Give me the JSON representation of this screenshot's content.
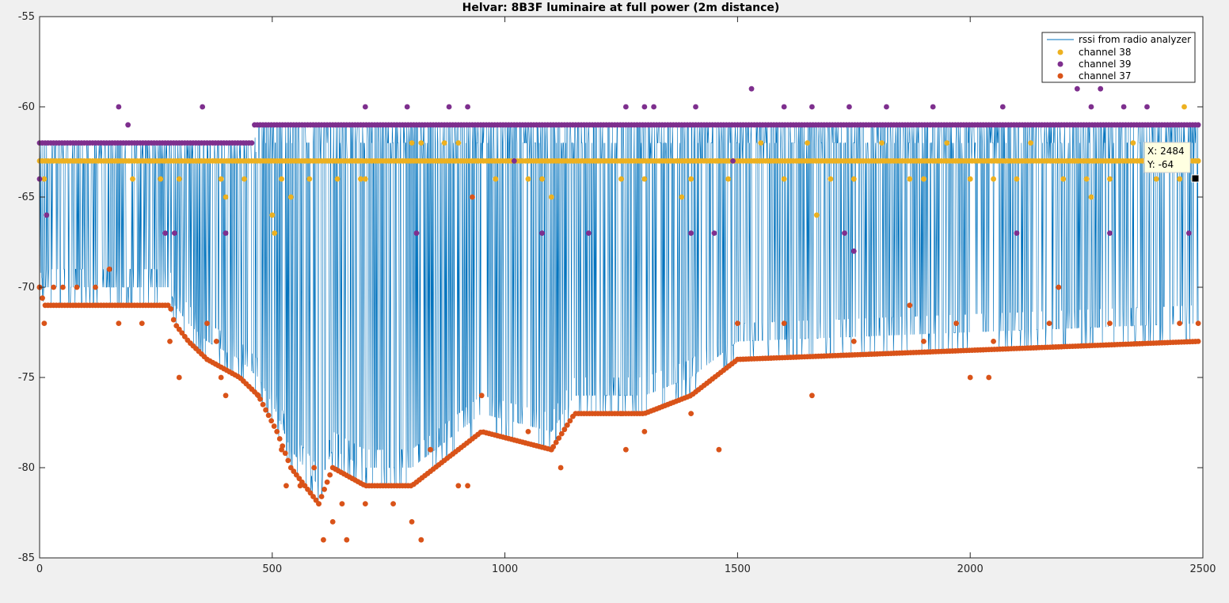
{
  "chart_data": {
    "type": "line",
    "title": "Helvar: 8B3F luminaire at full power (2m distance)",
    "xlabel": "",
    "ylabel": "",
    "xlim": [
      0,
      2500
    ],
    "ylim": [
      -85,
      -55
    ],
    "x_ticks": [
      0,
      500,
      1000,
      1500,
      2000,
      2500
    ],
    "y_ticks": [
      -55,
      -60,
      -65,
      -70,
      -75,
      -80,
      -85
    ],
    "grid": false,
    "legend_position": "top-right",
    "series": [
      {
        "name": "rssi from radio analyzer",
        "style": "line",
        "color": "#0072BD",
        "note_values": "dense zig-zag between channel readings, upper ~-61/-62, lower follows channel 37 envelope",
        "upper_envelope": [
          [
            0,
            -62
          ],
          [
            460,
            -62
          ],
          [
            470,
            -61
          ],
          [
            2490,
            -61
          ]
        ],
        "lower_envelope": [
          [
            0,
            -70
          ],
          [
            10,
            -71
          ],
          [
            280,
            -71
          ],
          [
            290,
            -72
          ],
          [
            320,
            -73
          ],
          [
            360,
            -74
          ],
          [
            430,
            -75
          ],
          [
            470,
            -76
          ],
          [
            510,
            -78
          ],
          [
            540,
            -80
          ],
          [
            600,
            -82
          ],
          [
            630,
            -80
          ],
          [
            700,
            -81
          ],
          [
            800,
            -81
          ],
          [
            850,
            -80
          ],
          [
            900,
            -79
          ],
          [
            950,
            -78
          ],
          [
            1100,
            -79
          ],
          [
            1150,
            -77
          ],
          [
            1300,
            -77
          ],
          [
            1400,
            -76
          ],
          [
            1450,
            -75
          ],
          [
            1500,
            -74
          ],
          [
            2490,
            -73
          ]
        ]
      },
      {
        "name": "channel 38",
        "style": "markers",
        "color": "#EDB120",
        "points": [
          [
            10,
            -64
          ],
          [
            200,
            -64
          ],
          [
            260,
            -64
          ],
          [
            300,
            -64
          ],
          [
            390,
            -64
          ],
          [
            400,
            -65
          ],
          [
            440,
            -64
          ],
          [
            500,
            -66
          ],
          [
            505,
            -67
          ],
          [
            520,
            -64
          ],
          [
            540,
            -65
          ],
          [
            580,
            -64
          ],
          [
            640,
            -64
          ],
          [
            690,
            -64
          ],
          [
            700,
            -64
          ],
          [
            800,
            -62
          ],
          [
            820,
            -62
          ],
          [
            870,
            -62
          ],
          [
            900,
            -62
          ],
          [
            980,
            -64
          ],
          [
            1050,
            -64
          ],
          [
            1080,
            -64
          ],
          [
            1100,
            -65
          ],
          [
            1250,
            -64
          ],
          [
            1300,
            -64
          ],
          [
            1380,
            -65
          ],
          [
            1400,
            -64
          ],
          [
            1480,
            -64
          ],
          [
            1550,
            -62
          ],
          [
            1600,
            -64
          ],
          [
            1650,
            -62
          ],
          [
            1670,
            -66
          ],
          [
            1700,
            -64
          ],
          [
            1750,
            -64
          ],
          [
            1810,
            -62
          ],
          [
            1870,
            -64
          ],
          [
            1900,
            -64
          ],
          [
            1950,
            -62
          ],
          [
            2000,
            -64
          ],
          [
            2050,
            -64
          ],
          [
            2100,
            -64
          ],
          [
            2130,
            -62
          ],
          [
            2200,
            -64
          ],
          [
            2250,
            -64
          ],
          [
            2260,
            -65
          ],
          [
            2300,
            -64
          ],
          [
            2350,
            -62
          ],
          [
            2400,
            -64
          ],
          [
            2450,
            -64
          ],
          [
            2460,
            -60
          ],
          [
            2480,
            -64
          ],
          [
            2490,
            -63
          ]
        ],
        "baseline_value": -63
      },
      {
        "name": "channel 39",
        "style": "markers",
        "color": "#7E2F8E",
        "points": [
          [
            0,
            -64
          ],
          [
            15,
            -66
          ],
          [
            170,
            -60
          ],
          [
            190,
            -61
          ],
          [
            270,
            -67
          ],
          [
            290,
            -67
          ],
          [
            350,
            -60
          ],
          [
            400,
            -67
          ],
          [
            700,
            -60
          ],
          [
            790,
            -60
          ],
          [
            810,
            -67
          ],
          [
            880,
            -60
          ],
          [
            920,
            -60
          ],
          [
            1020,
            -63
          ],
          [
            1080,
            -67
          ],
          [
            1180,
            -67
          ],
          [
            1260,
            -60
          ],
          [
            1300,
            -60
          ],
          [
            1320,
            -60
          ],
          [
            1400,
            -67
          ],
          [
            1410,
            -60
          ],
          [
            1450,
            -67
          ],
          [
            1490,
            -63
          ],
          [
            1530,
            -59
          ],
          [
            1600,
            -60
          ],
          [
            1660,
            -60
          ],
          [
            1730,
            -67
          ],
          [
            1740,
            -60
          ],
          [
            1750,
            -68
          ],
          [
            1820,
            -60
          ],
          [
            1920,
            -60
          ],
          [
            2070,
            -60
          ],
          [
            2100,
            -67
          ],
          [
            2230,
            -59
          ],
          [
            2260,
            -60
          ],
          [
            2280,
            -59
          ],
          [
            2300,
            -67
          ],
          [
            2330,
            -60
          ],
          [
            2380,
            -60
          ],
          [
            2470,
            -67
          ]
        ],
        "baseline_value": -62,
        "upper_baseline_value": -61
      },
      {
        "name": "channel 37",
        "style": "markers",
        "color": "#D95319",
        "points": [
          [
            0,
            -70
          ],
          [
            10,
            -72
          ],
          [
            30,
            -70
          ],
          [
            50,
            -70
          ],
          [
            80,
            -70
          ],
          [
            120,
            -70
          ],
          [
            150,
            -69
          ],
          [
            170,
            -72
          ],
          [
            220,
            -72
          ],
          [
            280,
            -73
          ],
          [
            300,
            -75
          ],
          [
            360,
            -72
          ],
          [
            380,
            -73
          ],
          [
            390,
            -75
          ],
          [
            400,
            -76
          ],
          [
            470,
            -76
          ],
          [
            520,
            -79
          ],
          [
            530,
            -81
          ],
          [
            560,
            -81
          ],
          [
            590,
            -80
          ],
          [
            600,
            -82
          ],
          [
            610,
            -84
          ],
          [
            630,
            -83
          ],
          [
            650,
            -82
          ],
          [
            660,
            -84
          ],
          [
            700,
            -82
          ],
          [
            760,
            -82
          ],
          [
            800,
            -83
          ],
          [
            820,
            -84
          ],
          [
            840,
            -79
          ],
          [
            900,
            -81
          ],
          [
            920,
            -81
          ],
          [
            930,
            -65
          ],
          [
            950,
            -76
          ],
          [
            1050,
            -78
          ],
          [
            1100,
            -79
          ],
          [
            1120,
            -80
          ],
          [
            1250,
            -77
          ],
          [
            1260,
            -79
          ],
          [
            1300,
            -78
          ],
          [
            1400,
            -77
          ],
          [
            1460,
            -79
          ],
          [
            1500,
            -72
          ],
          [
            1600,
            -72
          ],
          [
            1660,
            -76
          ],
          [
            1750,
            -73
          ],
          [
            1870,
            -71
          ],
          [
            1900,
            -73
          ],
          [
            1970,
            -72
          ],
          [
            2000,
            -75
          ],
          [
            2040,
            -75
          ],
          [
            2050,
            -73
          ],
          [
            2170,
            -72
          ],
          [
            2190,
            -70
          ],
          [
            2300,
            -72
          ],
          [
            2450,
            -72
          ],
          [
            2490,
            -72
          ]
        ]
      }
    ],
    "datatip": {
      "x_label": "X: 2484",
      "y_label": "Y: -64",
      "x": 2484,
      "y": -64
    }
  }
}
